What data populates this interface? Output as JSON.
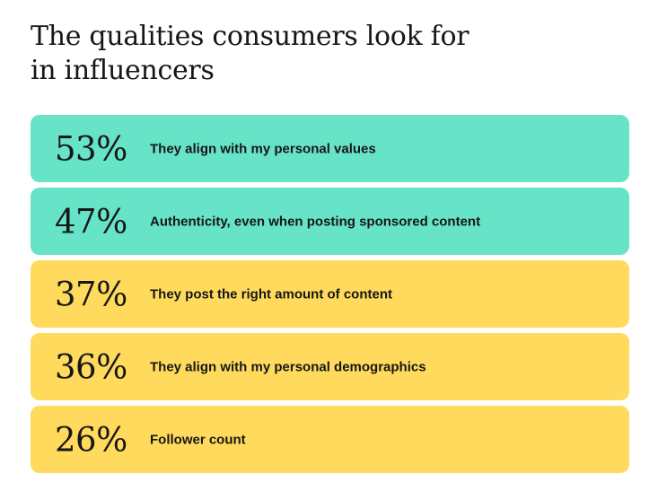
{
  "title_lines": [
    "The qualities consumers look for",
    "in influencers"
  ],
  "colors": {
    "teal": "#67E3C7",
    "yellow": "#FFDA5C"
  },
  "chart_data": {
    "type": "table",
    "title": "The qualities consumers look for in influencers",
    "rows": [
      {
        "value": 53,
        "value_label": "53%",
        "label": "They align with my personal values",
        "color": "#67E3C7"
      },
      {
        "value": 47,
        "value_label": "47%",
        "label": "Authenticity, even when posting sponsored content",
        "color": "#67E3C7"
      },
      {
        "value": 37,
        "value_label": "37%",
        "label": "They post the right amount of content",
        "color": "#FFDA5C"
      },
      {
        "value": 36,
        "value_label": "36%",
        "label": "They align with my personal demographics",
        "color": "#FFDA5C"
      },
      {
        "value": 26,
        "value_label": "26%",
        "label": "Follower count",
        "color": "#FFDA5C"
      }
    ]
  }
}
